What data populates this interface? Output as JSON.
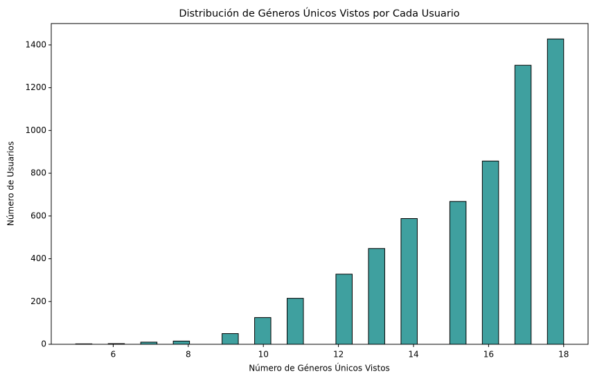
{
  "chart_data": {
    "type": "histogram",
    "title": "Distribución de Géneros Únicos Vistos por Cada Usuario",
    "xlabel": "Número de Géneros Únicos Vistos",
    "ylabel": "Número de Usuarios",
    "bins": [
      5,
      5.433,
      5.867,
      6.3,
      6.733,
      7.167,
      7.6,
      8.033,
      8.467,
      8.9,
      9.333,
      9.767,
      10.2,
      10.633,
      11.067,
      11.5,
      11.933,
      12.367,
      12.8,
      13.233,
      13.667,
      14.1,
      14.533,
      14.967,
      15.4,
      15.833,
      16.267,
      16.7,
      17.133,
      17.567,
      18
    ],
    "values": [
      2,
      0,
      3,
      0,
      10,
      0,
      15,
      0,
      0,
      50,
      0,
      125,
      0,
      215,
      0,
      0,
      328,
      0,
      448,
      0,
      588,
      0,
      0,
      668,
      0,
      857,
      0,
      1305,
      0,
      1428
    ],
    "color": "#3fa09f",
    "edgecolor": "#000000",
    "xlim": [
      4.35,
      18.65
    ],
    "ylim": [
      0,
      1500
    ],
    "xticks": [
      6,
      8,
      10,
      12,
      14,
      16,
      18
    ],
    "yticks": [
      0,
      200,
      400,
      600,
      800,
      1000,
      1200,
      1400
    ]
  }
}
